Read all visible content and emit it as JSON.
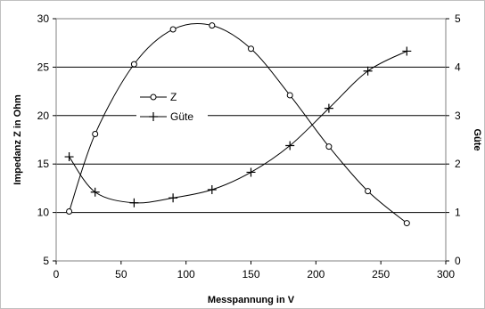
{
  "chart_data": {
    "type": "line",
    "title": "",
    "xlabel": "Messpannung in V",
    "ylabel_left": "Impedanz Z in Ohm",
    "ylabel_right": "Güte",
    "xlim": [
      0,
      300
    ],
    "ylim_left": [
      5,
      30
    ],
    "ylim_right": [
      0,
      5
    ],
    "x_ticks": [
      0,
      50,
      100,
      150,
      200,
      250,
      300
    ],
    "y_left_ticks": [
      5,
      10,
      15,
      20,
      25,
      30
    ],
    "y_right_ticks": [
      0,
      1,
      2,
      3,
      4,
      5
    ],
    "grid": "horizontal",
    "legend_position": "inside-upper-left",
    "series": [
      {
        "name": "Z",
        "axis": "left",
        "marker": "circle",
        "x": [
          10,
          30,
          60,
          90,
          120,
          150,
          180,
          210,
          240,
          270
        ],
        "values": [
          10.1,
          18.1,
          25.3,
          28.9,
          29.3,
          26.9,
          22.1,
          16.8,
          12.2,
          8.9
        ]
      },
      {
        "name": "Güte",
        "axis": "right",
        "marker": "plus",
        "x": [
          10,
          30,
          60,
          90,
          120,
          150,
          180,
          210,
          240,
          270
        ],
        "values": [
          2.15,
          1.42,
          1.2,
          1.3,
          1.47,
          1.83,
          2.38,
          3.15,
          3.92,
          4.33
        ]
      }
    ],
    "colors": {
      "line": "#000000",
      "grid": "#000000",
      "plot_border": "#808080",
      "background": "#ffffff"
    }
  }
}
